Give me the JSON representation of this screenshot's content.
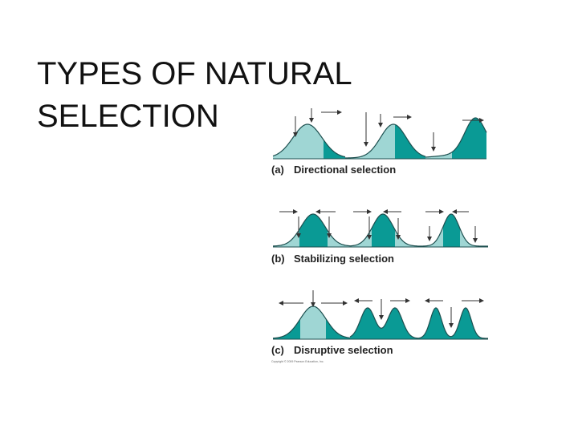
{
  "title": "TYPES OF NATURAL SELECTION",
  "panels": [
    {
      "letter": "(a)",
      "label": "Directional selection"
    },
    {
      "letter": "(b)",
      "label": "Stabilizing selection"
    },
    {
      "letter": "(c)",
      "label": "Disruptive selection"
    }
  ],
  "copyright": "Copyright © 2009 Pearson Education, Inc."
}
